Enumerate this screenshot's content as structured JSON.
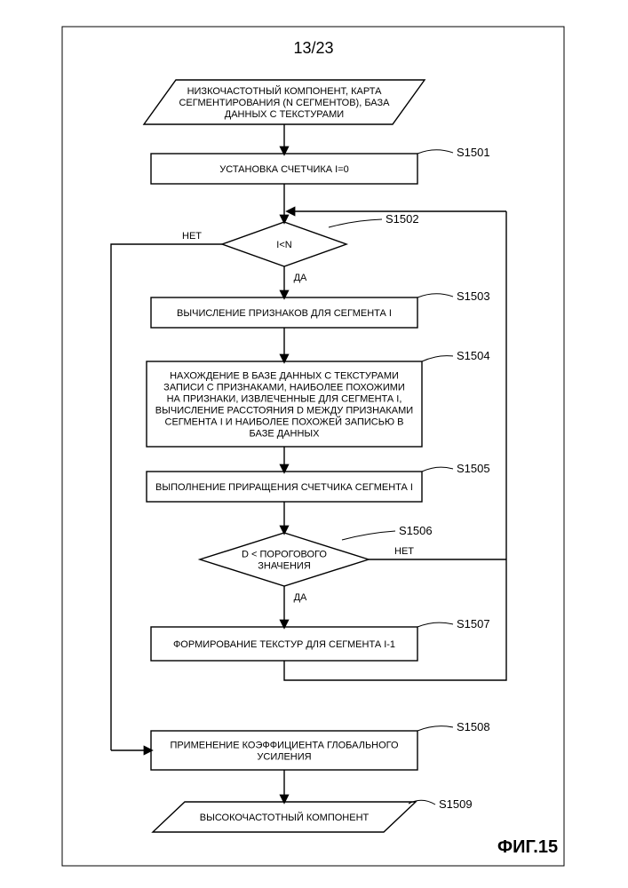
{
  "page_label": "13/23",
  "figure_label": "ФИГ.15",
  "colors": {
    "stroke": "#000000",
    "fill": "#ffffff",
    "background": "#ffffff"
  },
  "stroke_width": 1.4,
  "arrow": {
    "width": 8,
    "height": 10
  },
  "nodes": {
    "input": {
      "type": "parallelogram",
      "label": "S_input",
      "lines": [
        "НИЗКОЧАСТОТНЫЙ КОМПОНЕНТ, КАРТА",
        "СЕГМЕНТИРОВАНИЯ (N СЕГМЕНТОВ), БАЗА",
        "ДАННЫХ С ТЕКСТУРАМИ"
      ]
    },
    "s1501": {
      "type": "process",
      "label": "S1501",
      "lines": [
        "УСТАНОВКА СЧЕТЧИКА I=0"
      ]
    },
    "s1502": {
      "type": "decision",
      "label": "S1502",
      "lines": [
        "I<N"
      ]
    },
    "s1503": {
      "type": "process",
      "label": "S1503",
      "lines": [
        "ВЫЧИСЛЕНИЕ ПРИЗНАКОВ ДЛЯ СЕГМЕНТА I"
      ]
    },
    "s1504": {
      "type": "process",
      "label": "S1504",
      "lines": [
        "НАХОЖДЕНИЕ В БАЗЕ ДАННЫХ С ТЕКСТУРАМИ",
        "ЗАПИСИ С ПРИЗНАКАМИ, НАИБОЛЕЕ ПОХОЖИМИ",
        "НА ПРИЗНАКИ, ИЗВЛЕЧЕННЫЕ ДЛЯ СЕГМЕНТА I,",
        "ВЫЧИСЛЕНИЕ РАССТОЯНИЯ D МЕЖДУ ПРИЗНАКАМИ",
        "СЕГМЕНТА I И НАИБОЛЕЕ ПОХОЖЕЙ ЗАПИСЬЮ В",
        "БАЗЕ ДАННЫХ"
      ]
    },
    "s1505": {
      "type": "process",
      "label": "S1505",
      "lines": [
        "ВЫПОЛНЕНИЕ ПРИРАЩЕНИЯ СЧЕТЧИКА СЕГМЕНТА I"
      ]
    },
    "s1506": {
      "type": "decision",
      "label": "S1506",
      "lines": [
        "D < ПОРОГОВОГО",
        "ЗНАЧЕНИЯ"
      ]
    },
    "s1507": {
      "type": "process",
      "label": "S1507",
      "lines": [
        "ФОРМИРОВАНИЕ ТЕКСТУР ДЛЯ СЕГМЕНТА I-1"
      ]
    },
    "s1508": {
      "type": "process",
      "label": "S1508",
      "lines": [
        "ПРИМЕНЕНИЕ КОЭФФИЦИЕНТА ГЛОБАЛЬНОГО",
        "УСИЛЕНИЯ"
      ]
    },
    "s1509": {
      "type": "parallelogram",
      "label": "S1509",
      "lines": [
        "ВЫСОКОЧАСТОТНЫЙ КОМПОНЕНТ"
      ]
    }
  },
  "edge_labels": {
    "yes": "ДА",
    "no": "НЕТ"
  }
}
